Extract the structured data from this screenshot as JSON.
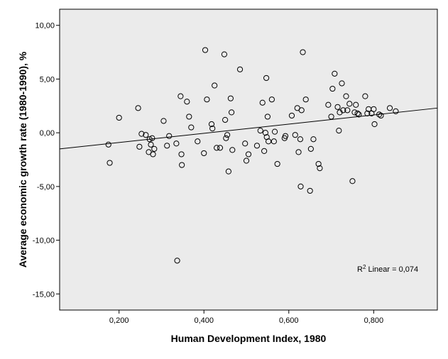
{
  "chart_data": {
    "type": "scatter",
    "xlabel": "Human Development Index, 1980",
    "ylabel": "Average economic growth rate (1980-1990), %",
    "xlim": [
      0.06,
      0.95
    ],
    "ylim": [
      -16.5,
      11.5
    ],
    "x_ticks": [
      0.2,
      0.4,
      0.6,
      0.8
    ],
    "x_tick_labels": [
      "0,200",
      "0,400",
      "0,600",
      "0,800"
    ],
    "y_ticks": [
      10,
      5,
      0,
      -5,
      -10,
      -15
    ],
    "y_tick_labels": [
      "10,00",
      "5,00",
      "0,00",
      "-5,00",
      "-10,00",
      "-15,00"
    ],
    "background": "#ebebeb",
    "marker": "open-circle",
    "fit_line": {
      "type": "linear",
      "x": [
        0.06,
        0.95
      ],
      "y": [
        -1.5,
        2.3
      ]
    },
    "annotation": {
      "prefix": "R",
      "sup": "2",
      "text": " Linear = 0,074",
      "position": "bottom-right"
    },
    "points": [
      [
        0.175,
        -1.1
      ],
      [
        0.178,
        -2.8
      ],
      [
        0.2,
        1.4
      ],
      [
        0.245,
        2.3
      ],
      [
        0.248,
        -1.3
      ],
      [
        0.253,
        -0.1
      ],
      [
        0.263,
        -0.2
      ],
      [
        0.27,
        -1.8
      ],
      [
        0.272,
        -0.6
      ],
      [
        0.275,
        -1.1
      ],
      [
        0.278,
        -0.5
      ],
      [
        0.28,
        -2.0
      ],
      [
        0.283,
        -1.5
      ],
      [
        0.305,
        1.1
      ],
      [
        0.313,
        -1.2
      ],
      [
        0.318,
        -0.3
      ],
      [
        0.335,
        -1.0
      ],
      [
        0.337,
        -11.9
      ],
      [
        0.345,
        3.4
      ],
      [
        0.347,
        -2.0
      ],
      [
        0.348,
        -3.0
      ],
      [
        0.36,
        2.9
      ],
      [
        0.365,
        1.5
      ],
      [
        0.37,
        0.5
      ],
      [
        0.385,
        -0.8
      ],
      [
        0.4,
        -1.9
      ],
      [
        0.403,
        7.7
      ],
      [
        0.407,
        3.1
      ],
      [
        0.418,
        0.8
      ],
      [
        0.42,
        0.4
      ],
      [
        0.425,
        4.4
      ],
      [
        0.43,
        -1.4
      ],
      [
        0.438,
        -1.4
      ],
      [
        0.448,
        7.3
      ],
      [
        0.45,
        1.2
      ],
      [
        0.452,
        -0.5
      ],
      [
        0.455,
        -0.2
      ],
      [
        0.458,
        -3.6
      ],
      [
        0.463,
        3.2
      ],
      [
        0.465,
        1.9
      ],
      [
        0.467,
        -1.6
      ],
      [
        0.485,
        5.9
      ],
      [
        0.497,
        -1.0
      ],
      [
        0.5,
        -2.6
      ],
      [
        0.505,
        -2.0
      ],
      [
        0.525,
        -1.2
      ],
      [
        0.533,
        0.2
      ],
      [
        0.538,
        2.8
      ],
      [
        0.542,
        -1.7
      ],
      [
        0.545,
        0.0
      ],
      [
        0.547,
        5.1
      ],
      [
        0.548,
        -0.4
      ],
      [
        0.55,
        1.5
      ],
      [
        0.552,
        -0.8
      ],
      [
        0.56,
        3.1
      ],
      [
        0.565,
        -0.8
      ],
      [
        0.567,
        0.1
      ],
      [
        0.573,
        -2.9
      ],
      [
        0.59,
        -0.5
      ],
      [
        0.592,
        -0.3
      ],
      [
        0.607,
        1.6
      ],
      [
        0.615,
        -0.2
      ],
      [
        0.62,
        2.3
      ],
      [
        0.623,
        -1.8
      ],
      [
        0.627,
        -0.6
      ],
      [
        0.628,
        -5.0
      ],
      [
        0.63,
        2.1
      ],
      [
        0.633,
        7.5
      ],
      [
        0.64,
        3.1
      ],
      [
        0.65,
        -5.4
      ],
      [
        0.652,
        -1.5
      ],
      [
        0.658,
        -0.6
      ],
      [
        0.67,
        -2.9
      ],
      [
        0.673,
        -3.3
      ],
      [
        0.693,
        2.6
      ],
      [
        0.7,
        1.5
      ],
      [
        0.703,
        4.1
      ],
      [
        0.708,
        5.5
      ],
      [
        0.715,
        2.4
      ],
      [
        0.718,
        0.2
      ],
      [
        0.72,
        1.9
      ],
      [
        0.725,
        4.6
      ],
      [
        0.728,
        2.1
      ],
      [
        0.735,
        3.4
      ],
      [
        0.738,
        2.1
      ],
      [
        0.743,
        2.7
      ],
      [
        0.75,
        -4.5
      ],
      [
        0.755,
        1.9
      ],
      [
        0.758,
        2.6
      ],
      [
        0.762,
        1.8
      ],
      [
        0.765,
        1.7
      ],
      [
        0.78,
        3.4
      ],
      [
        0.785,
        1.8
      ],
      [
        0.788,
        2.2
      ],
      [
        0.795,
        1.8
      ],
      [
        0.8,
        2.2
      ],
      [
        0.802,
        0.8
      ],
      [
        0.813,
        1.7
      ],
      [
        0.817,
        1.6
      ],
      [
        0.838,
        2.3
      ],
      [
        0.852,
        2.0
      ]
    ]
  }
}
